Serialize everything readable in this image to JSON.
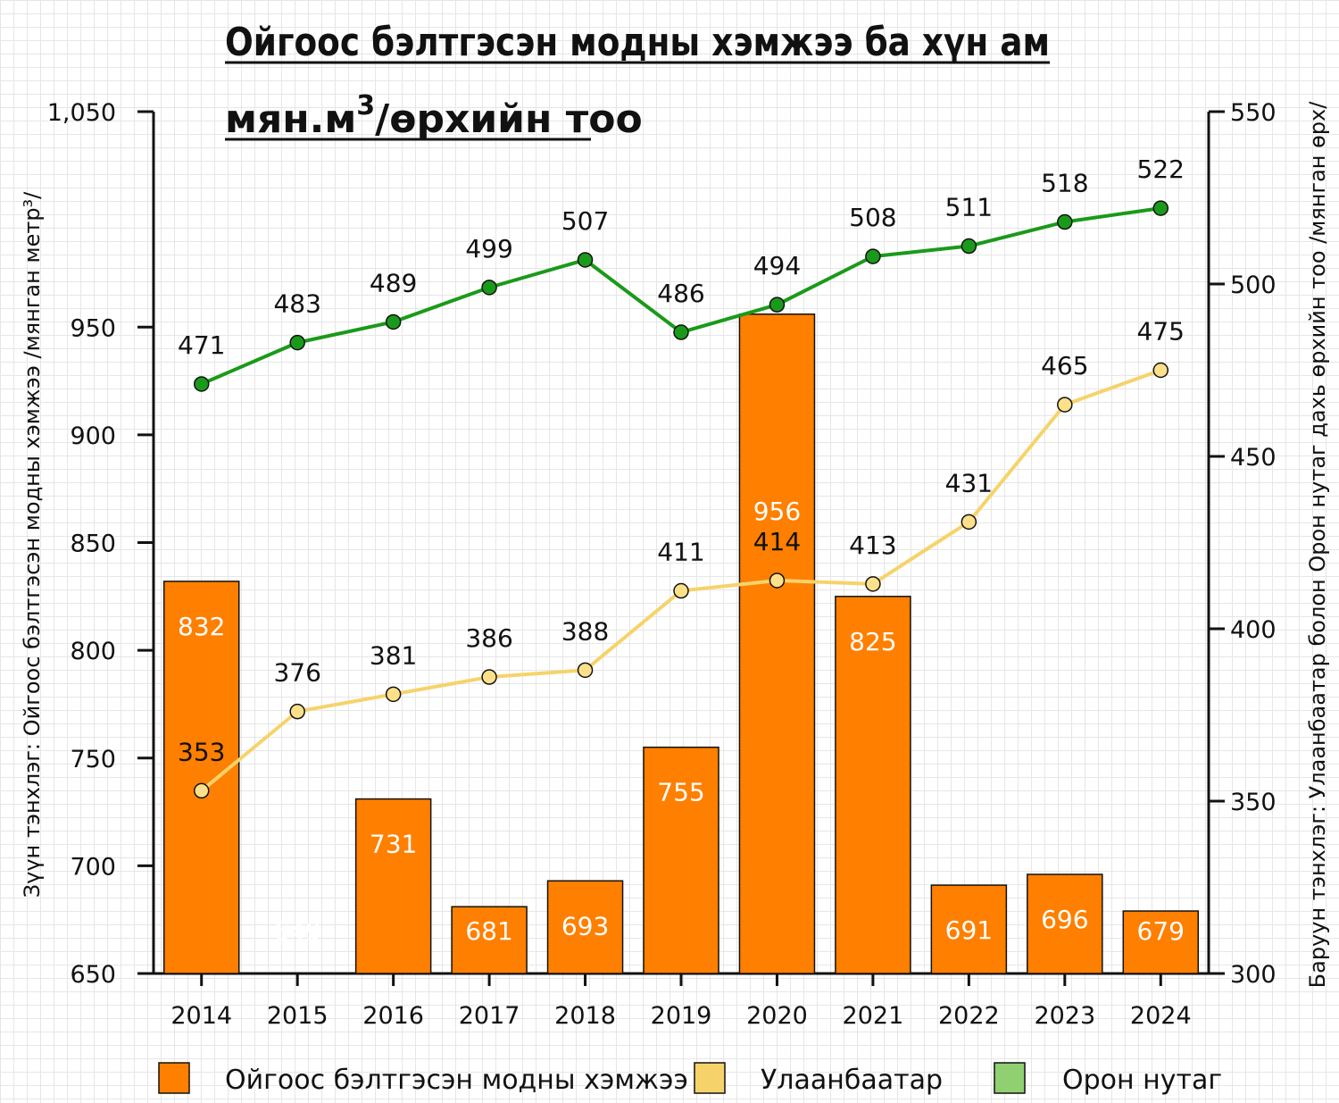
{
  "title_line1": "Ойгоос бэлтгэсэн модны хэмжээ ба хүн ам",
  "title_line2_main": "мян.м",
  "title_line2_sup": "3",
  "title_line2_rest": "/өрхийн тоо",
  "left_axis_label": "Зүүн тэнхлэг: Ойгоос бэлтгэсэн модны хэмжээ /мянган метр³/",
  "right_axis_label": "Баруун тэнхлэг: Улаанбаатар болон Орон нутаг дахь өрхийн тоо /мянган өрх/",
  "colors": {
    "bars": "#ff7f00",
    "ulaanbaatar": "#f6d36a",
    "ulaanbaatar_point": "#fde08a",
    "oron_nutag": "#1a9a1a",
    "oron_nutag_legend": "#90d070"
  },
  "chart_data": {
    "type": "bar",
    "categories": [
      "2014",
      "2015",
      "2016",
      "2017",
      "2018",
      "2019",
      "2020",
      "2021",
      "2022",
      "2023",
      "2024"
    ],
    "ylim_left": [
      650,
      1050
    ],
    "yticks_left": [
      "650",
      "700",
      "750",
      "800",
      "850",
      "900",
      "950",
      "1,050"
    ],
    "ylim_right": [
      300,
      550
    ],
    "yticks_right": [
      "300",
      "350",
      "400",
      "450",
      "500",
      "550"
    ],
    "series": [
      {
        "name": "Ойгоос бэлтгэсэн модны хэмжээ",
        "kind": "bar",
        "axis": "left",
        "values": [
          832,
          649,
          731,
          681,
          693,
          755,
          956,
          825,
          691,
          696,
          679
        ],
        "labels": [
          "832",
          "649",
          "731",
          "681",
          "693",
          "755",
          "956",
          "825",
          "691",
          "696",
          "679"
        ]
      },
      {
        "name": "Улаанбаатар",
        "kind": "line",
        "axis": "right",
        "values": [
          353,
          376,
          381,
          386,
          388,
          411,
          414,
          413,
          431,
          465,
          475
        ],
        "labels": [
          "353",
          "376",
          "381",
          "386",
          "388",
          "411",
          "414",
          "413",
          "431",
          "465",
          "475"
        ]
      },
      {
        "name": "Орон нутаг",
        "kind": "line",
        "axis": "right",
        "values": [
          471,
          483,
          489,
          499,
          507,
          486,
          494,
          508,
          511,
          518,
          522
        ],
        "labels": [
          "471",
          "483",
          "489",
          "499",
          "507",
          "486",
          "494",
          "508",
          "511",
          "518",
          "522"
        ]
      }
    ],
    "legend_position": "bottom",
    "grid": true
  }
}
